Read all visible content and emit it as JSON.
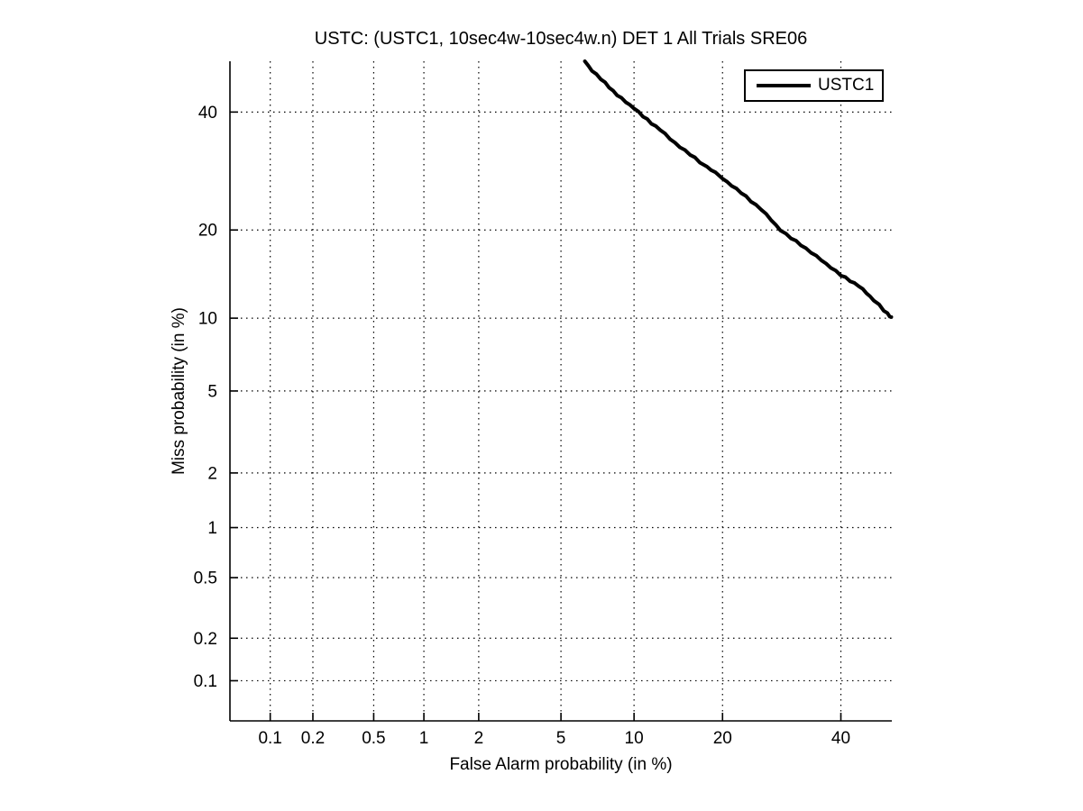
{
  "figure": {
    "background_color": "#ffffff",
    "foreground_color": "#000000"
  },
  "chart_data": {
    "type": "line",
    "style": "DET curve (Detection Error Tradeoff), both axes on normal-deviate (probit) scale",
    "title": "USTC: (USTC1, 10sec4w-10sec4w.n) DET 1 All Trials SRE06",
    "xlabel": "False Alarm probability (in %)",
    "ylabel": "Miss probability (in %)",
    "x_tick_labels": [
      "0.1",
      "0.2",
      "0.5",
      "1",
      "2",
      "5",
      "10",
      "20",
      "40"
    ],
    "y_tick_labels": [
      "0.1",
      "0.2",
      "0.5",
      "1",
      "2",
      "5",
      "10",
      "20",
      "40"
    ],
    "x_ticks_percent": [
      0.1,
      0.2,
      0.5,
      1,
      2,
      5,
      10,
      20,
      40
    ],
    "y_ticks_percent": [
      0.1,
      0.2,
      0.5,
      1,
      2,
      5,
      10,
      20,
      40
    ],
    "xlim_percent": [
      0.05,
      50
    ],
    "ylim_percent": [
      0.05,
      50
    ],
    "grid": "dotted",
    "axis_color": "#000000",
    "grid_color": "#000000",
    "legend": {
      "position": "top-right",
      "entries": [
        {
          "label": "USTC1",
          "color": "#000000",
          "line_width": 4
        }
      ]
    },
    "series": [
      {
        "name": "USTC1",
        "color": "#000000",
        "line_width": 4,
        "points_fa_miss_percent": [
          [
            6.35,
            50.0
          ],
          [
            6.8,
            48.2
          ],
          [
            7.4,
            46.5
          ],
          [
            8.0,
            44.9
          ],
          [
            8.6,
            43.3
          ],
          [
            9.3,
            42.0
          ],
          [
            10.0,
            40.8
          ],
          [
            10.8,
            39.2
          ],
          [
            11.6,
            37.9
          ],
          [
            12.5,
            36.6
          ],
          [
            13.5,
            35.0
          ],
          [
            14.6,
            33.5
          ],
          [
            15.8,
            32.1
          ],
          [
            17.0,
            30.8
          ],
          [
            17.9,
            29.9
          ],
          [
            19.0,
            28.9
          ],
          [
            20.0,
            28.0
          ],
          [
            21.3,
            26.8
          ],
          [
            22.7,
            25.6
          ],
          [
            24.2,
            24.3
          ],
          [
            25.8,
            23.0
          ],
          [
            27.4,
            21.5
          ],
          [
            29.0,
            20.0
          ],
          [
            30.8,
            18.9
          ],
          [
            32.6,
            18.0
          ],
          [
            34.4,
            17.0
          ],
          [
            36.3,
            16.1
          ],
          [
            38.1,
            15.2
          ],
          [
            40.0,
            14.3
          ],
          [
            41.8,
            13.7
          ],
          [
            43.5,
            13.1
          ],
          [
            45.0,
            12.4
          ],
          [
            46.4,
            11.7
          ],
          [
            47.5,
            11.2
          ],
          [
            48.4,
            10.7
          ],
          [
            49.1,
            10.4
          ],
          [
            49.6,
            10.2
          ],
          [
            49.9,
            10.1
          ]
        ]
      }
    ]
  }
}
